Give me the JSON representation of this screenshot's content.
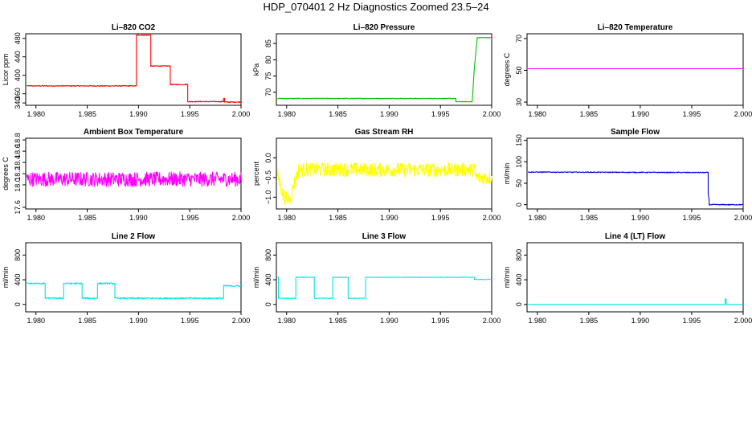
{
  "page": {
    "title": "HDP_070401  2 Hz Diagnostics Zoomed 23.5–24"
  },
  "chart_data": [
    {
      "type": "line",
      "title": "Li–820 CO2",
      "ylabel": "Licor ppm",
      "color": "#ff0000",
      "xlim": [
        1.979,
        2.0
      ],
      "ylim": [
        335,
        490
      ],
      "xticks": [
        "1.980",
        "1.985",
        "1.990",
        "1.995",
        "2.000"
      ],
      "xtick_values": [
        1.98,
        1.985,
        1.99,
        1.995,
        2.0
      ],
      "yticks": [
        "340",
        "360",
        "400",
        "440",
        "480"
      ],
      "ytick_values": [
        340,
        360,
        400,
        440,
        480
      ],
      "noise": 1,
      "x": [
        1.9791,
        1.9898,
        1.9898,
        1.9912,
        1.9912,
        1.9931,
        1.9931,
        1.9948,
        1.9948,
        1.9983,
        1.9983,
        1.9984,
        1.9984,
        2.0
      ],
      "y": [
        377,
        377,
        487,
        487,
        420,
        420,
        380,
        380,
        343,
        343,
        350,
        350,
        342,
        342
      ]
    },
    {
      "type": "line",
      "title": "Li–820 Pressure",
      "ylabel": "kPa",
      "color": "#00c000",
      "xlim": [
        1.979,
        2.0
      ],
      "ylim": [
        66,
        88
      ],
      "xticks": [
        "1.980",
        "1.985",
        "1.990",
        "1.995",
        "2.000"
      ],
      "xtick_values": [
        1.98,
        1.985,
        1.99,
        1.995,
        2.0
      ],
      "yticks": [
        "70",
        "75",
        "80",
        "85"
      ],
      "ytick_values": [
        70,
        75,
        80,
        85
      ],
      "noise": 0.1,
      "x": [
        1.9791,
        1.9965,
        1.9965,
        1.9981,
        1.9983,
        1.9985,
        1.9986,
        2.0
      ],
      "y": [
        68.1,
        68.1,
        67.1,
        67.1,
        77,
        84,
        86.8,
        86.8
      ]
    },
    {
      "type": "line",
      "title": "Li–820 Temperature",
      "ylabel": "degrees C",
      "color": "#ff00ff",
      "xlim": [
        1.979,
        2.0
      ],
      "ylim": [
        28,
        73
      ],
      "xticks": [
        "1.980",
        "1.985",
        "1.990",
        "1.995",
        "2.000"
      ],
      "xtick_values": [
        1.98,
        1.985,
        1.99,
        1.995,
        2.0
      ],
      "yticks": [
        "30",
        "50",
        "70"
      ],
      "ytick_values": [
        30,
        50,
        70
      ],
      "noise": 0,
      "x": [
        1.9791,
        2.0
      ],
      "y": [
        51,
        51
      ]
    },
    {
      "type": "line",
      "title": "Ambient Box Temperature",
      "ylabel": "degrees C",
      "color": "#ff00ff",
      "xlim": [
        1.979,
        2.0
      ],
      "ylim": [
        17.57,
        18.83
      ],
      "xticks": [
        "1.980",
        "1.985",
        "1.990",
        "1.995",
        "2.000"
      ],
      "xtick_values": [
        1.98,
        1.985,
        1.99,
        1.995,
        2.0
      ],
      "yticks": [
        "17.6",
        "18.0",
        "18.2",
        "18.4",
        "18.6",
        "18.8"
      ],
      "ytick_values": [
        17.6,
        18.0,
        18.2,
        18.4,
        18.6,
        18.8
      ],
      "noise": 0.13,
      "x": [
        1.9791,
        2.0
      ],
      "y": [
        18.1,
        18.1
      ]
    },
    {
      "type": "line",
      "title": "Gas Stream RH",
      "ylabel": "percent",
      "color": "#ffff00",
      "xlim": [
        1.979,
        2.0
      ],
      "ylim": [
        -1.3,
        0.5
      ],
      "xticks": [
        "1.980",
        "1.985",
        "1.990",
        "1.995",
        "2.000"
      ],
      "xtick_values": [
        1.98,
        1.985,
        1.99,
        1.995,
        2.0
      ],
      "yticks": [
        "−1.0",
        "−0.5",
        "0.0"
      ],
      "ytick_values": [
        -1.0,
        -0.5,
        0.0
      ],
      "noise": 0.18,
      "x": [
        1.9791,
        1.9797,
        1.9803,
        1.9808,
        1.9812,
        1.9983,
        1.9985,
        2.0
      ],
      "y": [
        -0.4,
        -1.0,
        -1.05,
        -0.6,
        -0.3,
        -0.3,
        -0.5,
        -0.5
      ]
    },
    {
      "type": "line",
      "title": "Sample Flow",
      "ylabel": "ml/min",
      "color": "#0000dd",
      "xlim": [
        1.979,
        2.0
      ],
      "ylim": [
        -10,
        155
      ],
      "xticks": [
        "1.980",
        "1.985",
        "1.990",
        "1.995",
        "2.000"
      ],
      "xtick_values": [
        1.98,
        1.985,
        1.99,
        1.995,
        2.0
      ],
      "yticks": [
        "0",
        "50",
        "100",
        "150"
      ],
      "ytick_values": [
        0,
        50,
        100,
        150
      ],
      "noise": 1,
      "x": [
        1.9791,
        1.9966,
        1.9966,
        1.9967,
        1.9967,
        2.0
      ],
      "y": [
        76,
        75,
        25,
        10,
        0,
        0
      ]
    },
    {
      "type": "line",
      "title": "Line 2 Flow",
      "ylabel": "ml/min",
      "color": "#00e5e5",
      "xlim": [
        1.979,
        2.0
      ],
      "ylim": [
        -120,
        1000
      ],
      "xticks": [
        "1.980",
        "1.985",
        "1.990",
        "1.995",
        "2.000"
      ],
      "xtick_values": [
        1.98,
        1.985,
        1.99,
        1.995,
        2.0
      ],
      "yticks": [
        "0",
        "400",
        "800"
      ],
      "ytick_values": [
        0,
        400,
        800
      ],
      "noise": 12,
      "x": [
        1.9791,
        1.9809,
        1.9809,
        1.9827,
        1.9827,
        1.9845,
        1.9845,
        1.986,
        1.986,
        1.9877,
        1.9877,
        1.9983,
        1.9983,
        2.0
      ],
      "y": [
        340,
        340,
        100,
        100,
        340,
        340,
        100,
        100,
        340,
        340,
        100,
        100,
        300,
        300
      ]
    },
    {
      "type": "line",
      "title": "Line 3 Flow",
      "ylabel": "ml/min",
      "color": "#00e5e5",
      "xlim": [
        1.979,
        2.0
      ],
      "ylim": [
        -120,
        1000
      ],
      "xticks": [
        "1.980",
        "1.985",
        "1.990",
        "1.995",
        "2.000"
      ],
      "xtick_values": [
        1.98,
        1.985,
        1.99,
        1.995,
        2.0
      ],
      "yticks": [
        "0",
        "400",
        "800"
      ],
      "ytick_values": [
        0,
        400,
        800
      ],
      "noise": 4,
      "x": [
        1.9791,
        1.9792,
        1.9792,
        1.9809,
        1.9809,
        1.9827,
        1.9827,
        1.9845,
        1.9845,
        1.986,
        1.986,
        1.9877,
        1.9877,
        1.9983,
        1.9983,
        2.0
      ],
      "y": [
        440,
        440,
        100,
        100,
        440,
        440,
        100,
        100,
        440,
        440,
        100,
        100,
        440,
        440,
        405,
        405
      ]
    },
    {
      "type": "line",
      "title": "Line 4 (LT) Flow",
      "ylabel": "ml/min",
      "color": "#00e5e5",
      "xlim": [
        1.979,
        2.0
      ],
      "ylim": [
        -120,
        1000
      ],
      "xticks": [
        "1.980",
        "1.985",
        "1.990",
        "1.995",
        "2.000"
      ],
      "xtick_values": [
        1.98,
        1.985,
        1.99,
        1.995,
        2.0
      ],
      "yticks": [
        "0",
        "400",
        "800"
      ],
      "ytick_values": [
        0,
        400,
        800
      ],
      "noise": 0,
      "x": [
        1.9791,
        1.99825,
        1.99825,
        1.99835,
        1.99835,
        2.0
      ],
      "y": [
        0,
        0,
        90,
        90,
        0,
        0
      ]
    }
  ]
}
